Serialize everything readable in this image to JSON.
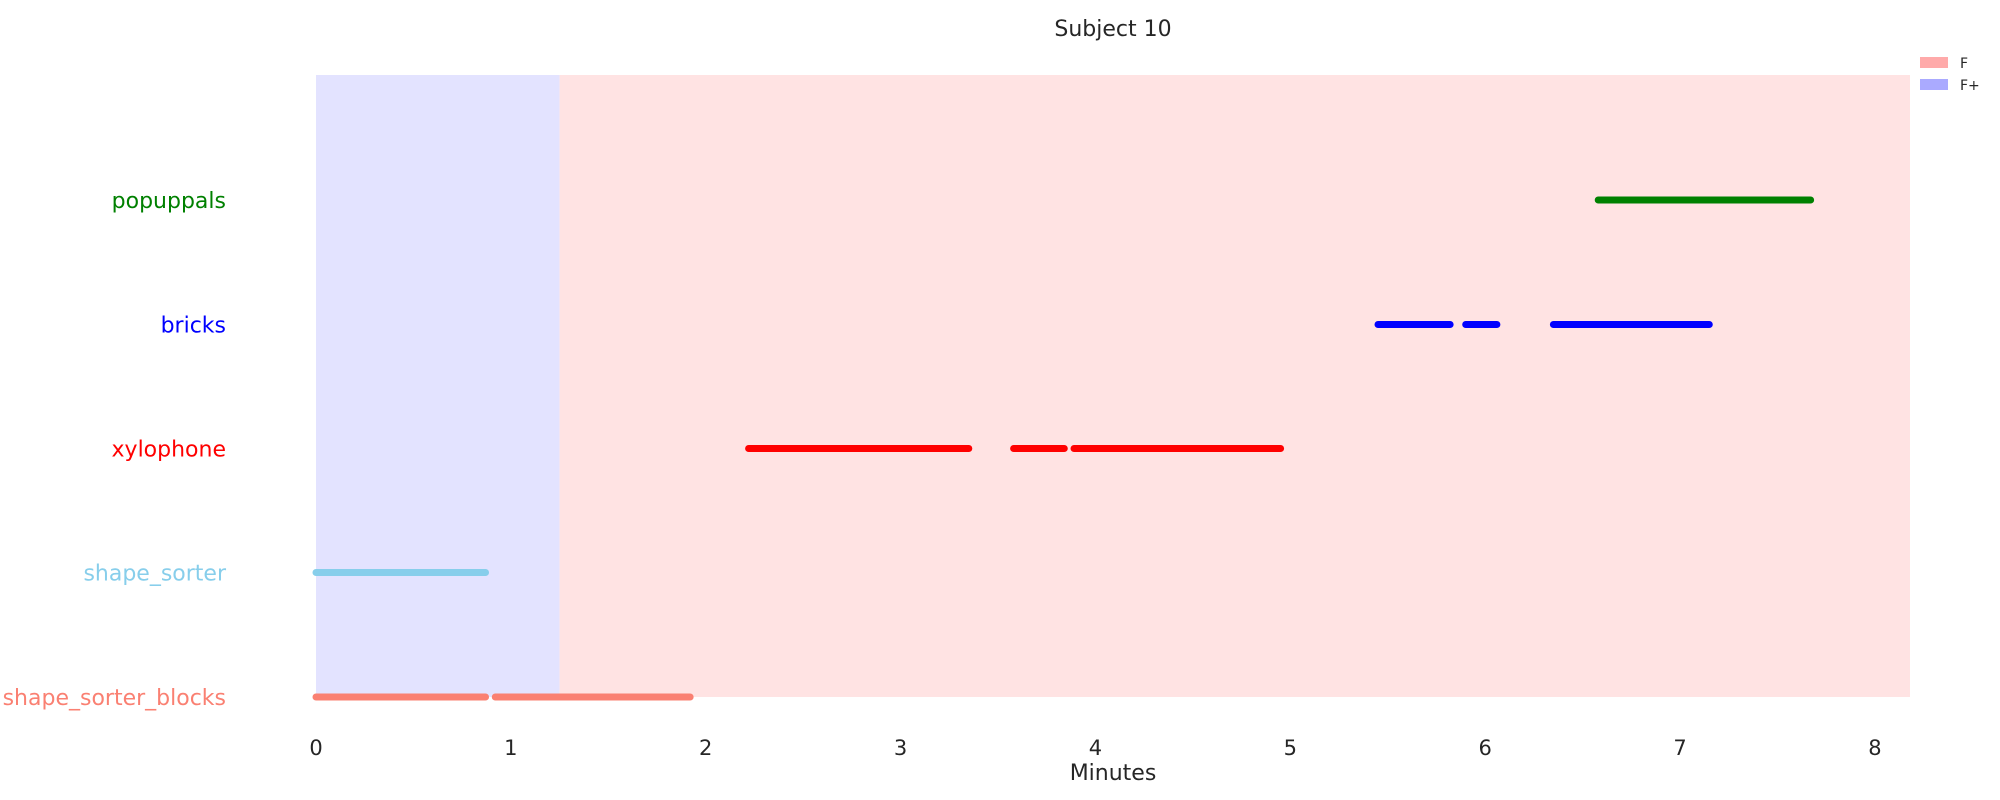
{
  "chart_data": {
    "type": "timeline",
    "title": "Subject 10",
    "xlabel": "Minutes",
    "xlim": [
      0,
      8.18
    ],
    "xticks": [
      0,
      1,
      2,
      3,
      4,
      5,
      6,
      7,
      8
    ],
    "legend": {
      "placement": "top-right",
      "entries": [
        {
          "label": "F",
          "color": "#ffaaaa"
        },
        {
          "label": "F+",
          "color": "#aaaaff"
        }
      ]
    },
    "background_spans": [
      {
        "label": "F+",
        "start": 0.0,
        "end": 1.25,
        "color": "#e3e3ff"
      },
      {
        "label": "F",
        "start": 1.25,
        "end": 8.18,
        "color": "#ffe3e3"
      }
    ],
    "categories": [
      "shape_sorter_blocks",
      "shape_sorter",
      "xylophone",
      "bricks",
      "popuppals"
    ],
    "series": [
      {
        "name": "popuppals",
        "color": "#008000",
        "segments": [
          [
            6.58,
            7.67
          ]
        ]
      },
      {
        "name": "bricks",
        "color": "#0000ff",
        "segments": [
          [
            5.45,
            5.82
          ],
          [
            5.9,
            6.06
          ],
          [
            6.35,
            7.15
          ]
        ]
      },
      {
        "name": "xylophone",
        "color": "#ff0000",
        "segments": [
          [
            2.22,
            3.35
          ],
          [
            3.58,
            3.84
          ],
          [
            3.89,
            4.95
          ]
        ]
      },
      {
        "name": "shape_sorter",
        "color": "#87ceeb",
        "segments": [
          [
            0.0,
            0.87
          ]
        ]
      },
      {
        "name": "shape_sorter_blocks",
        "color": "#fa8072",
        "segments": [
          [
            0.0,
            0.87
          ],
          [
            0.92,
            1.92
          ]
        ]
      }
    ]
  }
}
